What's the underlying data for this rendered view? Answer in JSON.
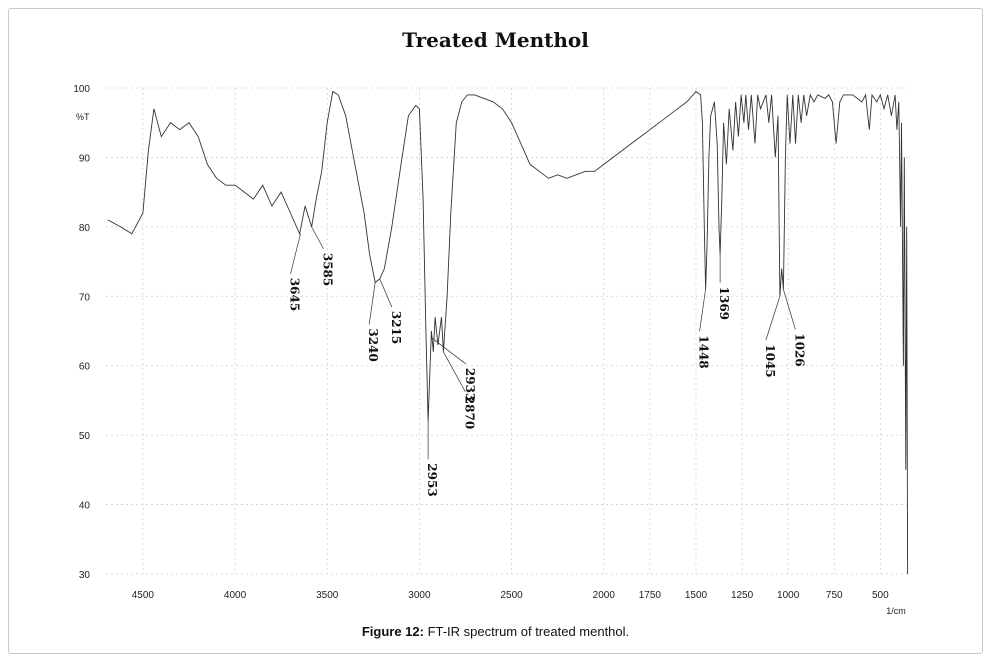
{
  "chart_data": {
    "type": "line",
    "title": "Treated Menthol",
    "ylabel": "%T",
    "xlabel": "1/cm",
    "xlim": [
      4700,
      350
    ],
    "ylim": [
      30,
      100
    ],
    "x_ticks": [
      4500,
      4000,
      3500,
      3000,
      2500,
      2000,
      1750,
      1500,
      1250,
      1000,
      750,
      500
    ],
    "x_tick_labels": [
      "4500",
      "4000",
      "3500",
      "3000",
      "2500",
      "2000",
      "1750",
      "1500",
      "1250",
      "1000",
      "750",
      "500"
    ],
    "y_ticks": [
      100,
      90,
      80,
      70,
      60,
      50,
      40,
      30
    ],
    "y_tick_labels": [
      "100",
      "90",
      "80",
      "70",
      "60",
      "50",
      "40",
      "30"
    ],
    "grid": true,
    "series": [
      {
        "points": [
          [
            4690,
            81
          ],
          [
            4620,
            80
          ],
          [
            4560,
            79
          ],
          [
            4500,
            82
          ],
          [
            4470,
            91
          ],
          [
            4440,
            97
          ],
          [
            4400,
            93
          ],
          [
            4350,
            95
          ],
          [
            4300,
            94
          ],
          [
            4250,
            95
          ],
          [
            4200,
            93
          ],
          [
            4150,
            89
          ],
          [
            4100,
            87
          ],
          [
            4050,
            86
          ],
          [
            4000,
            86
          ],
          [
            3950,
            85
          ],
          [
            3900,
            84
          ],
          [
            3850,
            86
          ],
          [
            3800,
            83
          ],
          [
            3750,
            85
          ],
          [
            3700,
            82
          ],
          [
            3650,
            79
          ],
          [
            3620,
            83
          ],
          [
            3585,
            80
          ],
          [
            3560,
            84
          ],
          [
            3530,
            88
          ],
          [
            3500,
            95
          ],
          [
            3470,
            99.5
          ],
          [
            3440,
            99
          ],
          [
            3400,
            96
          ],
          [
            3350,
            89
          ],
          [
            3300,
            82
          ],
          [
            3270,
            76
          ],
          [
            3240,
            72
          ],
          [
            3215,
            72.5
          ],
          [
            3190,
            74
          ],
          [
            3150,
            80
          ],
          [
            3100,
            89
          ],
          [
            3060,
            96
          ],
          [
            3020,
            97.5
          ],
          [
            3000,
            97
          ],
          [
            2980,
            84
          ],
          [
            2965,
            65
          ],
          [
            2953,
            52
          ],
          [
            2945,
            58
          ],
          [
            2935,
            65
          ],
          [
            2925,
            62
          ],
          [
            2915,
            67
          ],
          [
            2900,
            63
          ],
          [
            2880,
            67
          ],
          [
            2870,
            62
          ],
          [
            2850,
            70
          ],
          [
            2830,
            82
          ],
          [
            2800,
            95
          ],
          [
            2770,
            98
          ],
          [
            2740,
            99
          ],
          [
            2700,
            99
          ],
          [
            2650,
            98.5
          ],
          [
            2600,
            98
          ],
          [
            2550,
            97
          ],
          [
            2500,
            95
          ],
          [
            2450,
            92
          ],
          [
            2400,
            89
          ],
          [
            2350,
            88
          ],
          [
            2300,
            87
          ],
          [
            2250,
            87.5
          ],
          [
            2200,
            87
          ],
          [
            2150,
            87.5
          ],
          [
            2100,
            88
          ],
          [
            2050,
            88
          ],
          [
            2000,
            89
          ],
          [
            1950,
            90
          ],
          [
            1900,
            91
          ],
          [
            1850,
            92
          ],
          [
            1800,
            93
          ],
          [
            1750,
            94
          ],
          [
            1700,
            95
          ],
          [
            1650,
            96
          ],
          [
            1600,
            97
          ],
          [
            1550,
            98
          ],
          [
            1500,
            99.5
          ],
          [
            1475,
            99
          ],
          [
            1465,
            95
          ],
          [
            1455,
            80
          ],
          [
            1448,
            71
          ],
          [
            1440,
            77
          ],
          [
            1430,
            90
          ],
          [
            1420,
            96
          ],
          [
            1400,
            98
          ],
          [
            1385,
            92
          ],
          [
            1375,
            80
          ],
          [
            1369,
            76
          ],
          [
            1360,
            84
          ],
          [
            1350,
            95
          ],
          [
            1335,
            89
          ],
          [
            1320,
            97
          ],
          [
            1300,
            91
          ],
          [
            1285,
            98
          ],
          [
            1270,
            93
          ],
          [
            1255,
            99
          ],
          [
            1240,
            95
          ],
          [
            1230,
            99
          ],
          [
            1215,
            94
          ],
          [
            1200,
            99
          ],
          [
            1180,
            92
          ],
          [
            1165,
            99
          ],
          [
            1150,
            97
          ],
          [
            1120,
            99
          ],
          [
            1105,
            95
          ],
          [
            1090,
            99
          ],
          [
            1070,
            90
          ],
          [
            1055,
            96
          ],
          [
            1045,
            70
          ],
          [
            1035,
            74
          ],
          [
            1026,
            71
          ],
          [
            1015,
            90
          ],
          [
            1005,
            99
          ],
          [
            990,
            92
          ],
          [
            975,
            99
          ],
          [
            960,
            92
          ],
          [
            945,
            99
          ],
          [
            930,
            95
          ],
          [
            915,
            99
          ],
          [
            900,
            96
          ],
          [
            880,
            99
          ],
          [
            860,
            98
          ],
          [
            840,
            99
          ],
          [
            800,
            98.5
          ],
          [
            780,
            99
          ],
          [
            760,
            98
          ],
          [
            740,
            92
          ],
          [
            720,
            98
          ],
          [
            700,
            99
          ],
          [
            650,
            99
          ],
          [
            600,
            98
          ],
          [
            580,
            99
          ],
          [
            560,
            94
          ],
          [
            545,
            99
          ],
          [
            520,
            98
          ],
          [
            500,
            99
          ],
          [
            480,
            97
          ],
          [
            460,
            99
          ],
          [
            440,
            96
          ],
          [
            420,
            99
          ],
          [
            410,
            94
          ],
          [
            400,
            98
          ],
          [
            390,
            80
          ],
          [
            385,
            95
          ],
          [
            375,
            60
          ],
          [
            370,
            90
          ],
          [
            362,
            45
          ],
          [
            357,
            80
          ],
          [
            352,
            30
          ]
        ]
      }
    ],
    "annotations": [
      {
        "label": "3645",
        "x": 3645,
        "y": 79
      },
      {
        "label": "3585",
        "x": 3585,
        "y": 80
      },
      {
        "label": "3240",
        "x": 3240,
        "y": 72
      },
      {
        "label": "3215",
        "x": 3215,
        "y": 72.5
      },
      {
        "label": "2953",
        "x": 2953,
        "y": 52
      },
      {
        "label": "2933",
        "x": 2933,
        "y": 64
      },
      {
        "label": "2870",
        "x": 2870,
        "y": 62
      },
      {
        "label": "1448",
        "x": 1448,
        "y": 71
      },
      {
        "label": "1369",
        "x": 1369,
        "y": 76
      },
      {
        "label": "1045",
        "x": 1045,
        "y": 70
      },
      {
        "label": "1026",
        "x": 1026,
        "y": 71
      }
    ]
  },
  "caption": {
    "prefix": "Figure 12:",
    "text": " FT-IR spectrum of treated menthol."
  }
}
